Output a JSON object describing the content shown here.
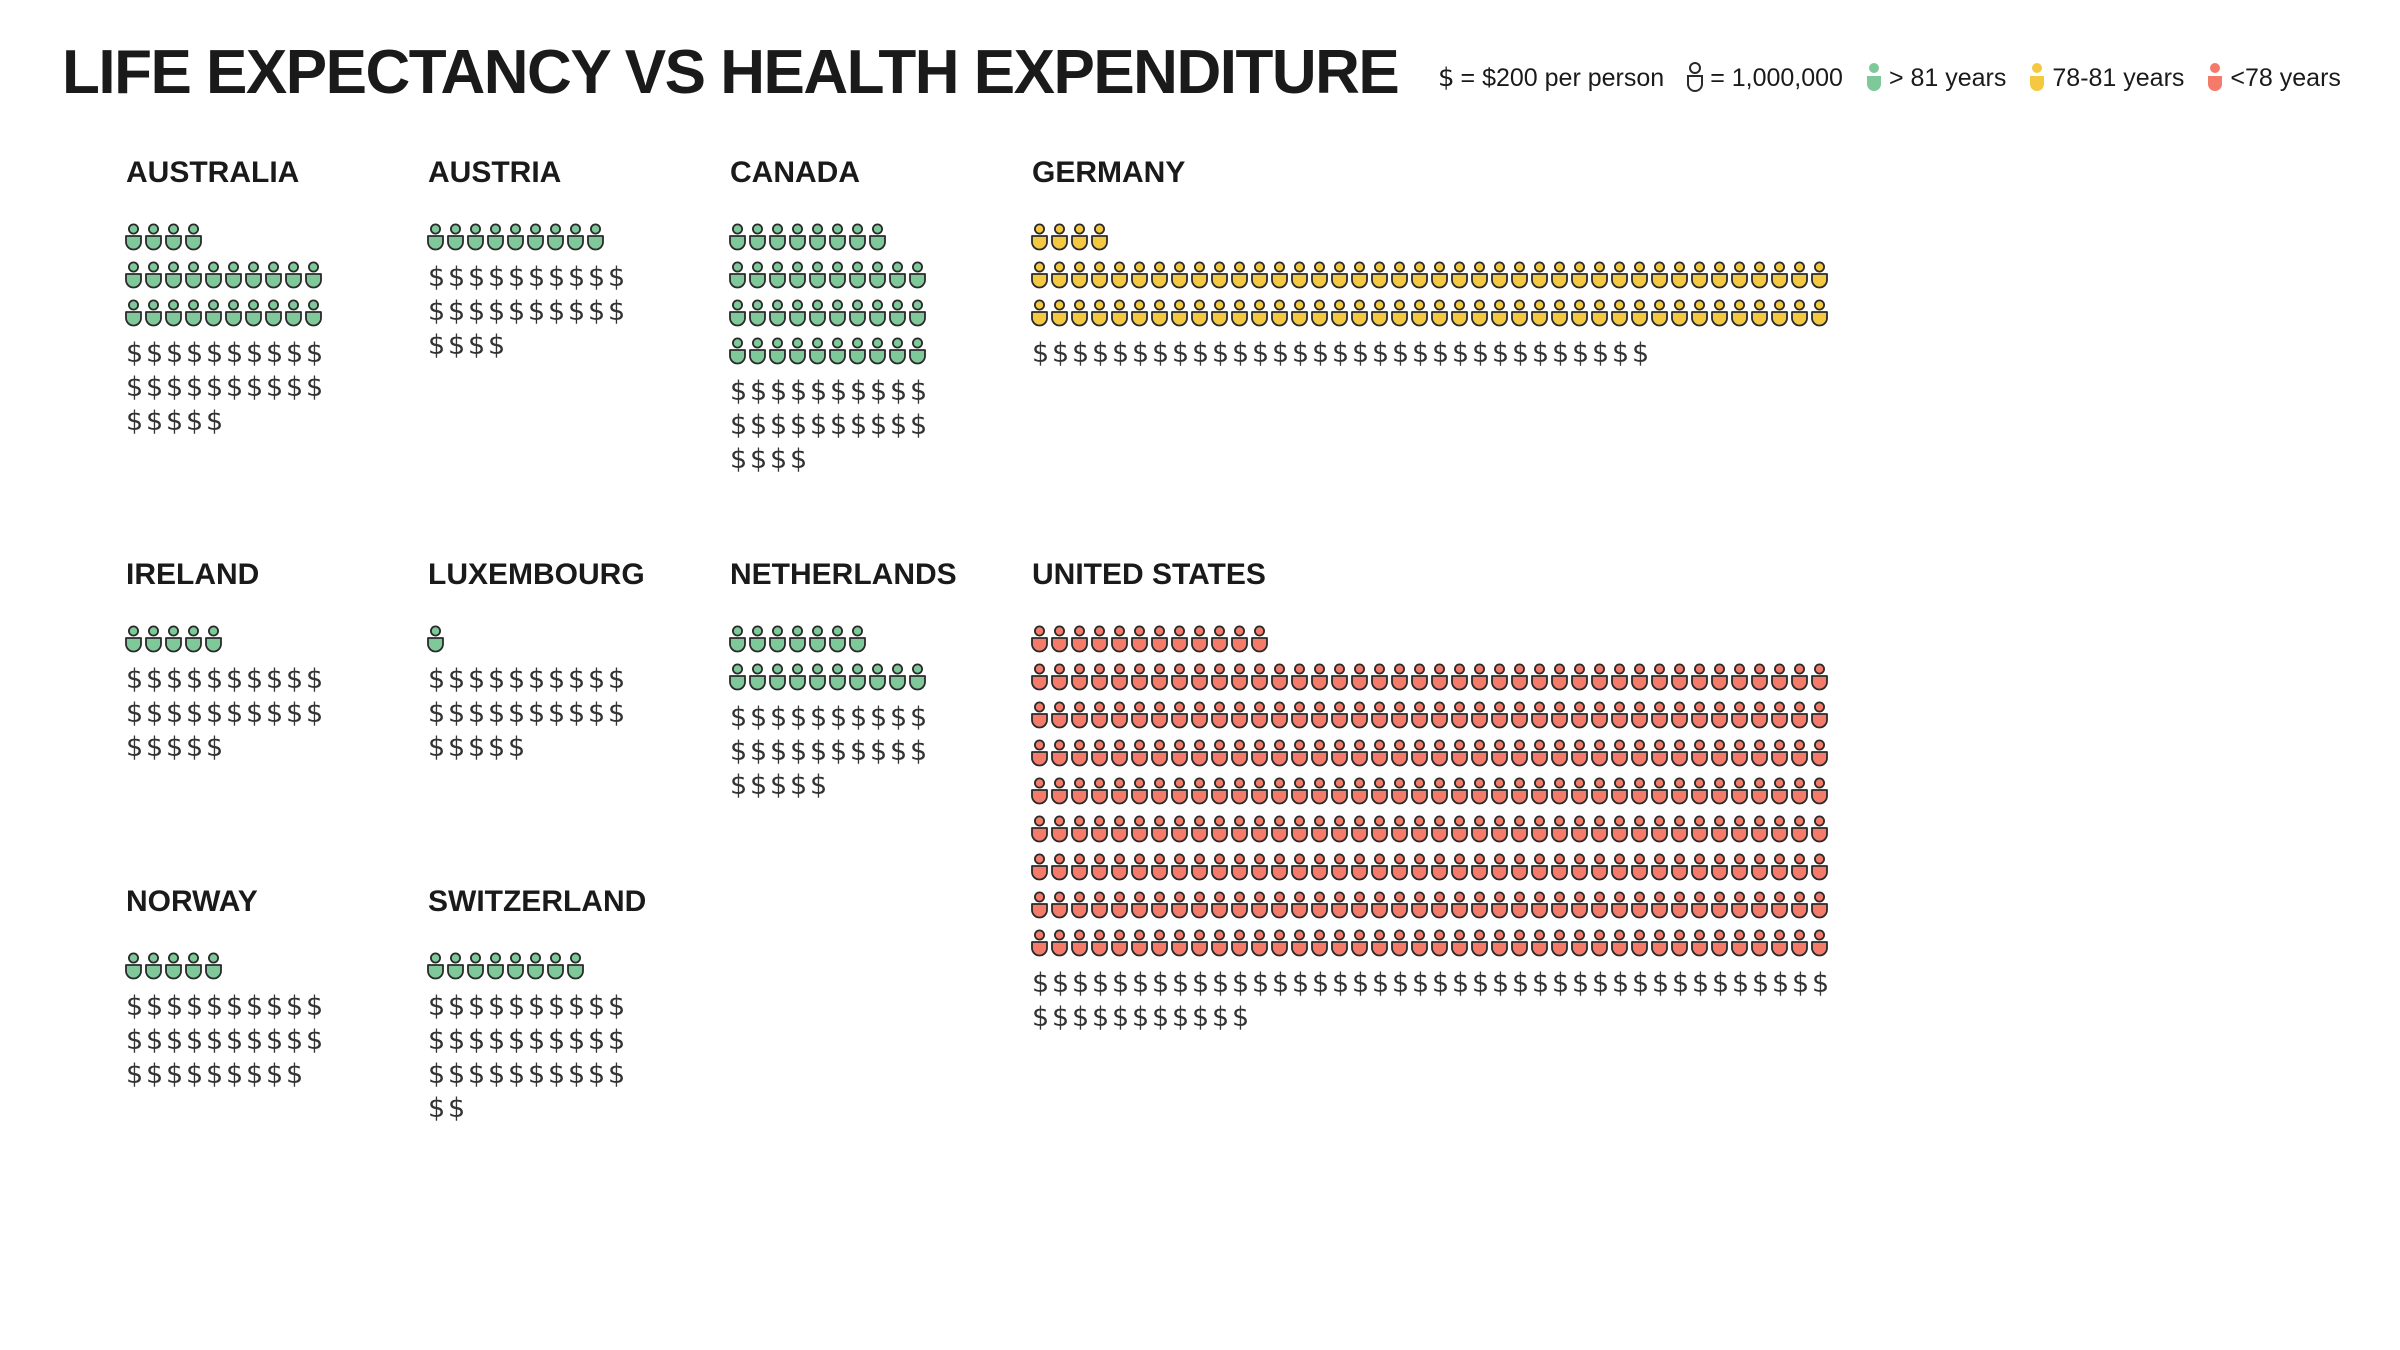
{
  "title": "LIFE EXPECTANCY VS HEALTH EXPENDITURE",
  "legend": {
    "dollar_text": "= $200 per person",
    "person_text": "= 1,000,000",
    "high_text": "> 81 years",
    "mid_text": "78-81 years",
    "low_text": "<78 years"
  },
  "chart_data": {
    "type": "pictogram",
    "title": "LIFE EXPECTANCY VS HEALTH EXPENDITURE",
    "unit_person": 1000000,
    "unit_dollar": 200,
    "categories": {
      "high": "> 81 years",
      "mid": "78-81 years",
      "low": "<78 years"
    },
    "colors": {
      "high": "#7fc89a",
      "mid": "#f5c842",
      "low": "#f47a6a",
      "outline": "#2a2a2a"
    },
    "countries": [
      {
        "name": "AUSTRALIA",
        "people": 24,
        "dollars": 25,
        "category": "high"
      },
      {
        "name": "AUSTRIA",
        "people": 9,
        "dollars": 24,
        "category": "high"
      },
      {
        "name": "CANADA",
        "people": 38,
        "dollars": 24,
        "category": "high"
      },
      {
        "name": "GERMANY",
        "people": 84,
        "dollars": 31,
        "category": "mid"
      },
      {
        "name": "IRELAND",
        "people": 5,
        "dollars": 25,
        "category": "high"
      },
      {
        "name": "LUXEMBOURG",
        "people": 1,
        "dollars": 25,
        "category": "high"
      },
      {
        "name": "NETHERLANDS",
        "people": 17,
        "dollars": 25,
        "category": "high"
      },
      {
        "name": "UNITED STATES",
        "people": 332,
        "dollars": 51,
        "category": "low"
      },
      {
        "name": "NORWAY",
        "people": 5,
        "dollars": 29,
        "category": "high"
      },
      {
        "name": "SWITZERLAND",
        "people": 8,
        "dollars": 32,
        "category": "high"
      }
    ]
  }
}
